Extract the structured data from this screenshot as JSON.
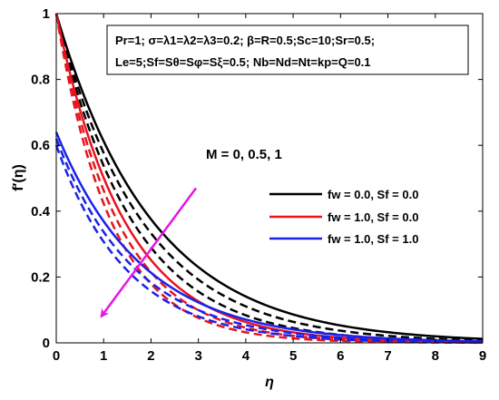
{
  "chart_data": {
    "type": "line",
    "xlabel": "η",
    "ylabel": "f′(η)",
    "xlim": [
      0,
      9
    ],
    "ylim": [
      0,
      1
    ],
    "x_ticks": [
      "0",
      "1",
      "2",
      "3",
      "4",
      "5",
      "6",
      "7",
      "8",
      "9"
    ],
    "y_ticks": [
      "0",
      "0.2",
      "0.4",
      "0.6",
      "0.8",
      "1"
    ],
    "grid": false,
    "legend_position": "center-right",
    "info_box": {
      "line1": "Pr=1; σ=λ1=λ2=λ3=0.2; β=R=0.5;Sc=10;Sr=0.5;",
      "line2": "Le=5;Sf=Sθ=Sφ=Sξ=0.5; Nb=Nd=Nt=kp=Q=0.1"
    },
    "annotation": "M = 0, 0.5, 1",
    "arrow": {
      "from": [
        2.95,
        0.47
      ],
      "to": [
        0.95,
        0.08
      ],
      "color": "#e815e8"
    },
    "series": [
      {
        "group": "black",
        "name": "fw = 0.0, Sf = 0.0",
        "color": "#000000",
        "f0": 1.0,
        "decay": [
          0.49,
          0.55,
          0.62
        ],
        "points": [
          {
            "x": 0,
            "y": 1.0
          },
          {
            "x": 1,
            "y": 0.61
          },
          {
            "x": 2,
            "y": 0.37
          },
          {
            "x": 3,
            "y": 0.23
          },
          {
            "x": 4,
            "y": 0.14
          },
          {
            "x": 5,
            "y": 0.09
          },
          {
            "x": 6,
            "y": 0.05
          },
          {
            "x": 7,
            "y": 0.03
          },
          {
            "x": 8,
            "y": 0.02
          },
          {
            "x": 9,
            "y": 0.01
          }
        ]
      },
      {
        "group": "red",
        "name": "fw = 1.0, Sf = 0.0",
        "color": "#e8141e",
        "f0": 1.0,
        "decay": [
          0.69,
          0.77,
          0.86
        ],
        "points": [
          {
            "x": 0,
            "y": 1.0
          },
          {
            "x": 1,
            "y": 0.5
          },
          {
            "x": 2,
            "y": 0.25
          },
          {
            "x": 3,
            "y": 0.13
          },
          {
            "x": 4,
            "y": 0.06
          },
          {
            "x": 5,
            "y": 0.03
          },
          {
            "x": 6,
            "y": 0.02
          },
          {
            "x": 7,
            "y": 0.01
          },
          {
            "x": 8,
            "y": 0.0
          },
          {
            "x": 9,
            "y": 0.0
          }
        ]
      },
      {
        "group": "blue",
        "name": "fw = 1.0, Sf = 1.0",
        "color": "#1a22e8",
        "f0": [
          0.64,
          0.62,
          0.6
        ],
        "decay": [
          0.55,
          0.61,
          0.67
        ],
        "points": [
          {
            "x": 0,
            "y": 0.64
          },
          {
            "x": 1,
            "y": 0.37
          },
          {
            "x": 2,
            "y": 0.21
          },
          {
            "x": 3,
            "y": 0.12
          },
          {
            "x": 4,
            "y": 0.07
          },
          {
            "x": 5,
            "y": 0.04
          },
          {
            "x": 6,
            "y": 0.02
          },
          {
            "x": 7,
            "y": 0.01
          },
          {
            "x": 8,
            "y": 0.01
          },
          {
            "x": 9,
            "y": 0.0
          }
        ]
      }
    ],
    "line_styles": [
      "solid",
      "dashed",
      "dashed"
    ]
  }
}
